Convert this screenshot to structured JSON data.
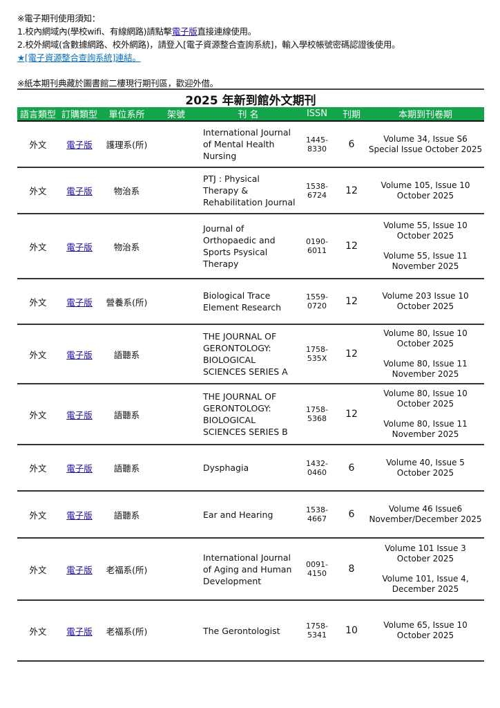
{
  "notice": {
    "heading": "※電子期刊使用須知：",
    "line1_pre": "1.校內網域內(學校wifi、有線網路)請點擊",
    "line1_link": "電子版",
    "line1_post": "直接連線使用。",
    "line2": "2.校外網域(含數據網路、校外網路)，請登入[電子資源整合查詢系統]，輸入學校帳號密碼認證後使用。",
    "system_link": "★[電子資源整合查詢系統]連結。",
    "paper_note": "※紙本期刊典藏於圖書館二樓現行期刊區，歡迎外借。"
  },
  "title": "2025 年新到館外文期刊",
  "colors": {
    "header_bg": "#12a54a",
    "link": "#1a0dab"
  },
  "columns": [
    "語言類型",
    "訂購類型",
    "單位系所",
    "架號",
    "刊  名",
    "ISSN",
    "刊期",
    "本期到刊卷期"
  ],
  "rows": [
    {
      "lang": "外文",
      "type": "電子版",
      "dept": "護理系(所)",
      "shelf": "",
      "name": "International Journal of Mental Health Nursing",
      "issn": "1445-8330",
      "freq": "6",
      "issues": [
        "Volume 34, Issue S6\nSpecial Issue October 2025"
      ]
    },
    {
      "lang": "外文",
      "type": "電子版",
      "dept": "物治系",
      "shelf": "",
      "name": "PTJ : Physical Therapy & Rehabilitation Journal",
      "issn": "1538-6724",
      "freq": "12",
      "issues": [
        "Volume 105, Issue 10\nOctober 2025"
      ]
    },
    {
      "lang": "外文",
      "type": "電子版",
      "dept": "物治系",
      "shelf": "",
      "name": "Journal of Orthopaedic and Sports Psysical Therapy",
      "issn": "0190-6011",
      "freq": "12",
      "issues": [
        "Volume 55, Issue 10\nOctober 2025",
        "Volume 55, Issue 11\nNovember 2025"
      ]
    },
    {
      "lang": "外文",
      "type": "電子版",
      "dept": "營養系(所)",
      "shelf": "",
      "name": "Biological Trace Element Research",
      "issn": "1559-0720",
      "freq": "12",
      "issues": [
        "Volume 203 Issue 10\nOctober 2025"
      ]
    },
    {
      "lang": "外文",
      "type": "電子版",
      "dept": "語聽系",
      "shelf": "",
      "name": "THE JOURNAL OF GERONTOLOGY: BIOLOGICAL SCIENCES SERIES A",
      "issn": "1758-535X",
      "freq": "12",
      "issues": [
        "Volume 80, Issue 10\nOctober 2025",
        "Volume 80, Issue 11\nNovember 2025"
      ]
    },
    {
      "lang": "外文",
      "type": "電子版",
      "dept": "語聽系",
      "shelf": "",
      "name": "THE JOURNAL OF GERONTOLOGY: BIOLOGICAL SCIENCES SERIES B",
      "issn": "1758-5368",
      "freq": "12",
      "issues": [
        "Volume 80, Issue 10\nOctober 2025",
        "Volume 80, Issue 11\nNovember 2025"
      ]
    },
    {
      "lang": "外文",
      "type": "電子版",
      "dept": "語聽系",
      "shelf": "",
      "name": "Dysphagia",
      "issn": "1432-0460",
      "freq": "6",
      "issues": [
        "Volume 40, Issue 5\nOctober 2025"
      ]
    },
    {
      "lang": "外文",
      "type": "電子版",
      "dept": "語聽系",
      "shelf": "",
      "name": "Ear and Hearing",
      "issn": "1538-4667",
      "freq": "6",
      "issues": [
        "Volume 46 Issue6\nNovember/December 2025"
      ]
    },
    {
      "lang": "外文",
      "type": "電子版",
      "dept": "老福系(所)",
      "shelf": "",
      "name": "International Journal of Aging and Human Development",
      "issn": "0091-4150",
      "freq": "8",
      "issues": [
        "Volume 101 Issue 3\nOctober 2025",
        "Volume 101, Issue 4,\nDecember 2025"
      ]
    },
    {
      "lang": "外文",
      "type": "電子版",
      "dept": "老福系(所)",
      "shelf": "",
      "name": "The Gerontologist",
      "issn": "1758-5341",
      "freq": "10",
      "issues": [
        "Volume 65, Issue 10\nOctober 2025"
      ]
    }
  ]
}
